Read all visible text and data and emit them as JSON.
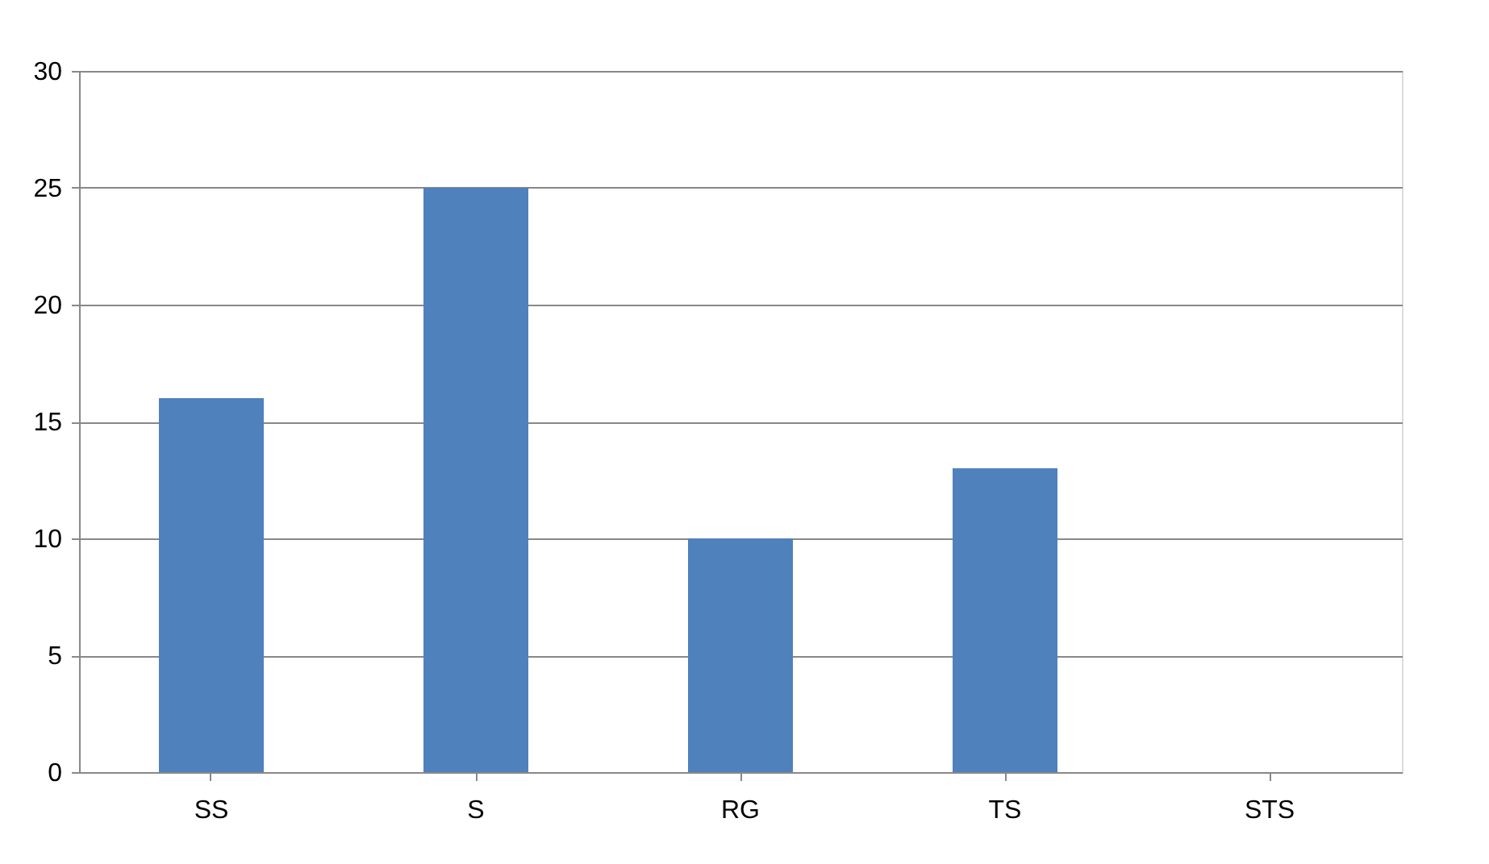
{
  "chart_data": {
    "type": "bar",
    "categories": [
      "SS",
      "S",
      "RG",
      "TS",
      "STS"
    ],
    "values": [
      16,
      25,
      10,
      13,
      0
    ],
    "color": "#4f81bd",
    "ylim": [
      0,
      30
    ],
    "yticks": [
      0,
      5,
      10,
      15,
      20,
      25,
      30
    ],
    "grid": "y"
  }
}
